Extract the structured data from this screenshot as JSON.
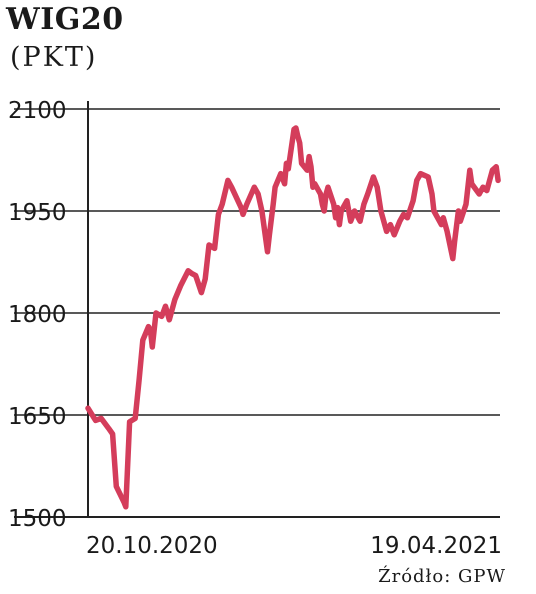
{
  "title": "WIG20",
  "unit": "(PKT)",
  "source": "Źródło: GPW",
  "colors": {
    "line": "#d43d5b",
    "grid": "#222222",
    "text": "#1a1a1a"
  },
  "chart_data": {
    "type": "line",
    "title": "WIG20",
    "ylabel": "(PKT)",
    "xlabel": "",
    "ylim": [
      1500,
      2100
    ],
    "yticks": [
      1500,
      1650,
      1800,
      1950,
      2100
    ],
    "grid": "horizontal",
    "legend": "none",
    "x_tick_labels": [
      {
        "label": "20.10.2020",
        "date": "2020-10-20"
      },
      {
        "label": "19.04.2021",
        "date": "2021-04-19"
      }
    ],
    "series": [
      {
        "name": "",
        "points": [
          [
            "2020-10-08",
            1660
          ],
          [
            "2020-10-12",
            1642
          ],
          [
            "2020-10-15",
            1645
          ],
          [
            "2020-10-19",
            1630
          ],
          [
            "2020-10-21",
            1622
          ],
          [
            "2020-10-23",
            1545
          ],
          [
            "2020-10-27",
            1522
          ],
          [
            "2020-10-28",
            1515
          ],
          [
            "2020-10-30",
            1640
          ],
          [
            "2020-11-02",
            1645
          ],
          [
            "2020-11-04",
            1700
          ],
          [
            "2020-11-06",
            1760
          ],
          [
            "2020-11-09",
            1780
          ],
          [
            "2020-11-10",
            1775
          ],
          [
            "2020-11-11",
            1750
          ],
          [
            "2020-11-13",
            1800
          ],
          [
            "2020-11-16",
            1795
          ],
          [
            "2020-11-18",
            1810
          ],
          [
            "2020-11-20",
            1790
          ],
          [
            "2020-11-23",
            1820
          ],
          [
            "2020-11-26",
            1840
          ],
          [
            "2020-11-30",
            1862
          ],
          [
            "2020-12-02",
            1858
          ],
          [
            "2020-12-04",
            1855
          ],
          [
            "2020-12-07",
            1830
          ],
          [
            "2020-12-09",
            1850
          ],
          [
            "2020-12-11",
            1900
          ],
          [
            "2020-12-14",
            1895
          ],
          [
            "2020-12-16",
            1945
          ],
          [
            "2020-12-18",
            1960
          ],
          [
            "2020-12-21",
            1995
          ],
          [
            "2020-12-23",
            1985
          ],
          [
            "2020-12-28",
            1955
          ],
          [
            "2020-12-29",
            1945
          ],
          [
            "2020-12-31",
            1960
          ],
          [
            "2021-01-04",
            1985
          ],
          [
            "2021-01-06",
            1975
          ],
          [
            "2021-01-08",
            1950
          ],
          [
            "2021-01-11",
            1890
          ],
          [
            "2021-01-12",
            1915
          ],
          [
            "2021-01-14",
            1960
          ],
          [
            "2021-01-15",
            1985
          ],
          [
            "2021-01-18",
            2005
          ],
          [
            "2021-01-20",
            1990
          ],
          [
            "2021-01-21",
            2020
          ],
          [
            "2021-01-22",
            2012
          ],
          [
            "2021-01-25",
            2070
          ],
          [
            "2021-01-26",
            2072
          ],
          [
            "2021-01-27",
            2060
          ],
          [
            "2021-01-28",
            2050
          ],
          [
            "2021-01-29",
            2020
          ],
          [
            "2021-02-01",
            2010
          ],
          [
            "2021-02-02",
            2030
          ],
          [
            "2021-02-03",
            2015
          ],
          [
            "2021-02-04",
            1985
          ],
          [
            "2021-02-05",
            1990
          ],
          [
            "2021-02-08",
            1975
          ],
          [
            "2021-02-09",
            1960
          ],
          [
            "2021-02-10",
            1950
          ],
          [
            "2021-02-11",
            1975
          ],
          [
            "2021-02-12",
            1985
          ],
          [
            "2021-02-15",
            1960
          ],
          [
            "2021-02-16",
            1940
          ],
          [
            "2021-02-17",
            1955
          ],
          [
            "2021-02-18",
            1930
          ],
          [
            "2021-02-19",
            1950
          ],
          [
            "2021-02-22",
            1965
          ],
          [
            "2021-02-24",
            1935
          ],
          [
            "2021-02-26",
            1950
          ],
          [
            "2021-03-01",
            1935
          ],
          [
            "2021-03-03",
            1960
          ],
          [
            "2021-03-05",
            1975
          ],
          [
            "2021-03-08",
            2000
          ],
          [
            "2021-03-10",
            1985
          ],
          [
            "2021-03-12",
            1950
          ],
          [
            "2021-03-15",
            1920
          ],
          [
            "2021-03-17",
            1930
          ],
          [
            "2021-03-19",
            1915
          ],
          [
            "2021-03-22",
            1935
          ],
          [
            "2021-03-24",
            1945
          ],
          [
            "2021-03-26",
            1940
          ],
          [
            "2021-03-29",
            1965
          ],
          [
            "2021-03-31",
            1995
          ],
          [
            "2021-04-02",
            2005
          ],
          [
            "2021-04-06",
            2000
          ],
          [
            "2021-04-08",
            1975
          ],
          [
            "2021-04-09",
            1950
          ],
          [
            "2021-04-12",
            1935
          ],
          [
            "2021-04-13",
            1930
          ],
          [
            "2021-04-14",
            1940
          ],
          [
            "2021-04-16",
            1920
          ],
          [
            "2021-04-19",
            1880
          ],
          [
            "2021-04-20",
            1905
          ],
          [
            "2021-04-22",
            1950
          ],
          [
            "2021-04-23",
            1935
          ],
          [
            "2021-04-26",
            1960
          ],
          [
            "2021-04-28",
            2010
          ],
          [
            "2021-04-29",
            1990
          ],
          [
            "2021-05-03",
            1975
          ],
          [
            "2021-05-05",
            1985
          ],
          [
            "2021-05-07",
            1980
          ],
          [
            "2021-05-10",
            2010
          ],
          [
            "2021-05-12",
            2015
          ],
          [
            "2021-05-13",
            1995
          ]
        ]
      }
    ]
  }
}
